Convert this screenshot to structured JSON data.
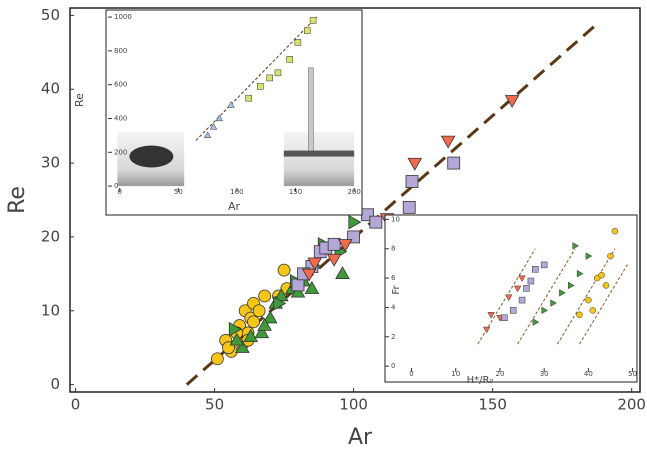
{
  "chart_data": [
    {
      "type": "scatter",
      "xlabel": "Ar",
      "ylabel": "Re",
      "xlim": [
        -2,
        203
      ],
      "ylim": [
        -1,
        51
      ],
      "xticks": [
        0,
        50,
        100,
        150,
        200
      ],
      "yticks": [
        0,
        10,
        20,
        30,
        40,
        50
      ],
      "series": [
        {
          "mode": "line",
          "color": "#5a3815",
          "dash": true,
          "x": [
            40,
            188
          ],
          "values": [
            0,
            49
          ]
        },
        {
          "marker": "circle",
          "color": "#f5c518",
          "x": [
            51,
            54,
            56,
            55,
            59,
            61,
            62,
            63,
            64,
            66,
            68,
            60,
            62,
            75,
            76,
            73,
            58,
            64
          ],
          "values": [
            3.5,
            6,
            4.5,
            5,
            8,
            10,
            7,
            9,
            11,
            10,
            12,
            5.5,
            6,
            15.5,
            13,
            12,
            7,
            8.5
          ]
        },
        {
          "marker": "triangle-up",
          "color": "#3f9a3a",
          "x": [
            60,
            63,
            67,
            70,
            72,
            74,
            78,
            80,
            82,
            85,
            96,
            68,
            58
          ],
          "values": [
            5,
            6.5,
            7,
            9,
            11,
            12,
            13,
            12.5,
            14,
            13,
            15,
            8,
            6
          ]
        },
        {
          "marker": "triangle-right",
          "color": "#3f9a3a",
          "x": [
            57,
            73,
            79,
            86,
            89,
            100,
            95
          ],
          "values": [
            7.5,
            11,
            14,
            16,
            19,
            22,
            18
          ]
        },
        {
          "marker": "square",
          "color": "#b4a6d6",
          "x": [
            80,
            85,
            88,
            90,
            93,
            100,
            105,
            108,
            120,
            121,
            136,
            82
          ],
          "values": [
            13.5,
            16,
            18,
            18.5,
            19,
            20,
            23,
            22,
            24,
            27.5,
            30,
            15
          ]
        },
        {
          "marker": "triangle-down",
          "color": "#f26b4f",
          "x": [
            84,
            93,
            97,
            112,
            122,
            134,
            157,
            86
          ],
          "values": [
            15,
            17,
            19,
            22.5,
            30,
            33,
            38.5,
            16.5
          ]
        }
      ]
    },
    {
      "type": "scatter",
      "xlabel": "Ar",
      "ylabel": "Re",
      "xlim": [
        -10,
        205
      ],
      "ylim": [
        -35,
        1030
      ],
      "xticks": [
        0,
        50,
        100,
        150,
        200
      ],
      "yticks": [
        0,
        200,
        400,
        600,
        800,
        1000
      ],
      "series": [
        {
          "mode": "line",
          "color": "#5a3815",
          "dash": true,
          "x": [
            65,
            168
          ],
          "values": [
            270,
            1000
          ]
        },
        {
          "marker": "triangle-up",
          "color": "#9fc3e8",
          "x": [
            75,
            80,
            85,
            95
          ],
          "values": [
            300,
            350,
            400,
            480
          ]
        },
        {
          "marker": "square",
          "color": "#d9e26a",
          "x": [
            110,
            120,
            128,
            135,
            145,
            152,
            160,
            165
          ],
          "values": [
            520,
            590,
            640,
            670,
            750,
            850,
            920,
            980
          ]
        }
      ]
    },
    {
      "type": "scatter",
      "xlabel": "H*/R₀",
      "ylabel": "Fr",
      "xlim": [
        -6,
        51
      ],
      "ylim": [
        -0.4,
        10.3
      ],
      "xticks": [
        0,
        10,
        20,
        30,
        40,
        50
      ],
      "yticks": [
        0,
        2,
        4,
        6,
        8,
        10
      ],
      "series": [
        {
          "mode": "line",
          "color": "#8a5a20",
          "dash": true,
          "x": [
            15,
            28
          ],
          "values": [
            1.5,
            8
          ]
        },
        {
          "mode": "line",
          "color": "#8a5a20",
          "dash": true,
          "x": [
            24,
            37
          ],
          "values": [
            1.5,
            8
          ]
        },
        {
          "mode": "line",
          "color": "#8a5a20",
          "dash": true,
          "x": [
            33,
            46
          ],
          "values": [
            1.5,
            8
          ]
        },
        {
          "mode": "line",
          "color": "#8a5a20",
          "dash": true,
          "x": [
            38,
            49
          ],
          "values": [
            1.5,
            7
          ]
        },
        {
          "marker": "triangle-down",
          "color": "#f26b4f",
          "x": [
            18,
            20,
            22,
            24,
            25,
            17
          ],
          "values": [
            3.5,
            3.3,
            4.7,
            5.3,
            6,
            2.5
          ]
        },
        {
          "marker": "square",
          "color": "#b4a6d6",
          "x": [
            21,
            23,
            25,
            26,
            27,
            28,
            30
          ],
          "values": [
            3.3,
            3.8,
            4.5,
            5.3,
            5.8,
            6.6,
            6.9
          ]
        },
        {
          "marker": "triangle-right",
          "color": "#3f9a3a",
          "x": [
            28,
            30,
            32,
            34,
            36,
            38,
            40,
            37
          ],
          "values": [
            3,
            3.8,
            4.3,
            5,
            5.5,
            6.3,
            7.5,
            8.2
          ]
        },
        {
          "marker": "circle",
          "color": "#f5c518",
          "x": [
            38,
            40,
            42,
            44,
            45,
            46,
            41,
            43
          ],
          "values": [
            3.5,
            4.5,
            6,
            5.5,
            7.5,
            9.2,
            3.8,
            6.2
          ]
        }
      ]
    }
  ]
}
